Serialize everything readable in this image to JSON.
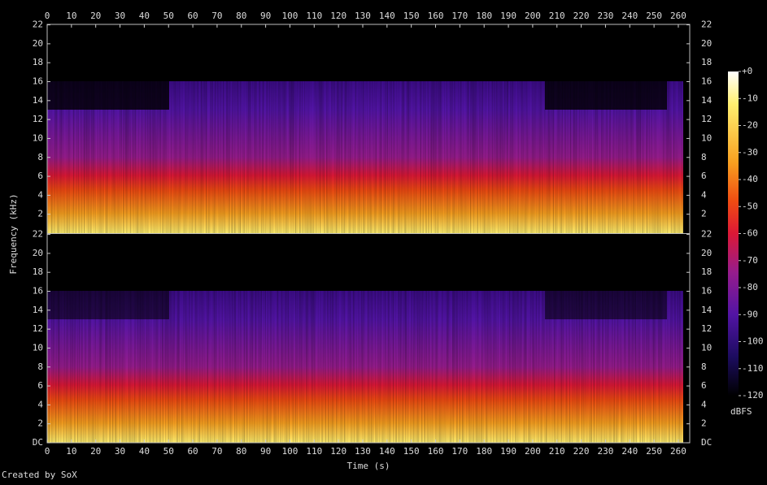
{
  "chart_data": {
    "type": "spectrogram",
    "x_label": "Time (s)",
    "y_label": "Frequency (kHz)",
    "footer": "Created by SoX",
    "xlim": [
      0,
      264.7
    ],
    "xticks": [
      0,
      10,
      20,
      30,
      40,
      50,
      60,
      70,
      80,
      90,
      100,
      110,
      120,
      130,
      140,
      150,
      160,
      170,
      180,
      190,
      200,
      210,
      220,
      230,
      240,
      250,
      260
    ],
    "ylim": [
      0,
      22.05
    ],
    "yticks": [
      {
        "value": 0,
        "label": "DC"
      },
      2,
      4,
      6,
      8,
      10,
      12,
      14,
      16,
      18,
      20,
      22
    ],
    "colorbar": {
      "label": "dBFS",
      "lim": [
        -120,
        0
      ],
      "ticks": [
        {
          "value": 0,
          "label": "+0"
        },
        -10,
        -20,
        -30,
        -40,
        -50,
        -60,
        -70,
        -80,
        -90,
        -100,
        -110,
        -120
      ]
    }
  }
}
